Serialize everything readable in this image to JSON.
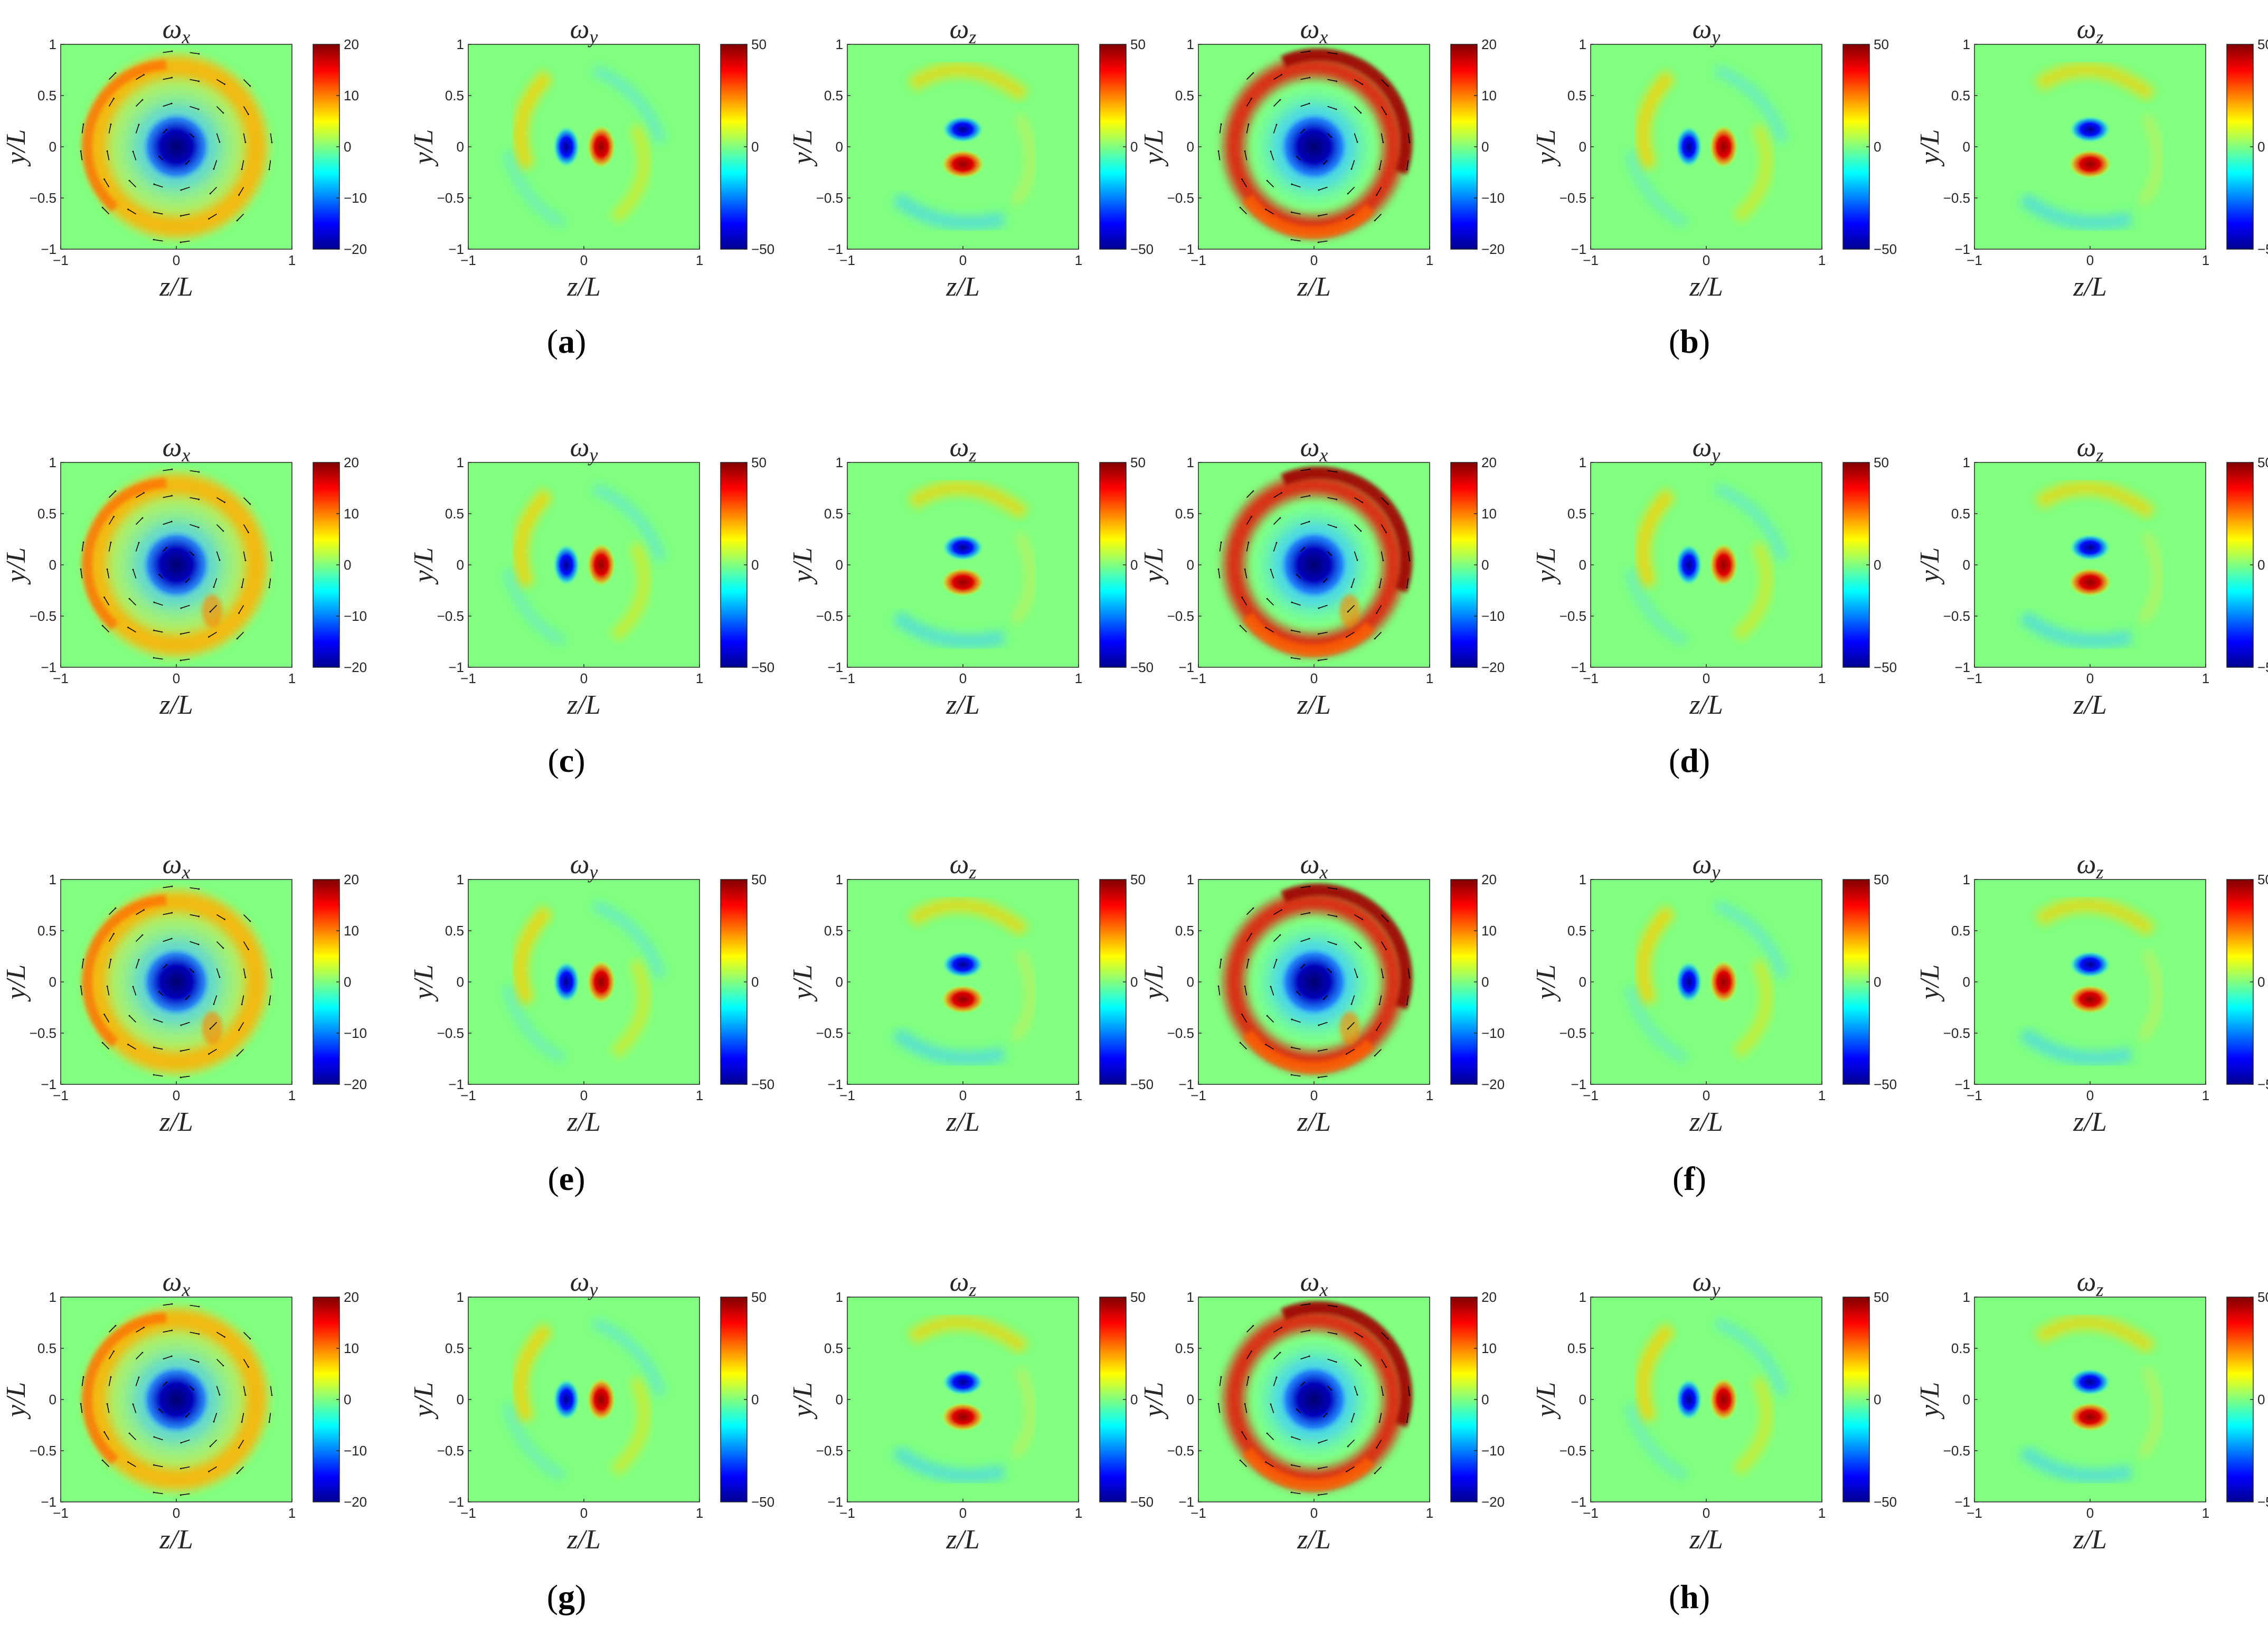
{
  "figure": {
    "panel_labels": [
      "(a)",
      "(b)",
      "(c)",
      "(d)",
      "(e)",
      "(f)",
      "(g)",
      "(h)"
    ],
    "column_titles": [
      "ωx",
      "ωy",
      "ωz",
      "ωx",
      "ωy",
      "ωz"
    ],
    "colormap": "jet"
  },
  "chart_data": {
    "type": "heatmap",
    "rows": 4,
    "columns": 6,
    "xlabel": "z/L",
    "ylabel": "y/L",
    "xlim": [
      -1,
      1
    ],
    "ylim": [
      -1,
      1
    ],
    "x_ticks": [
      -1,
      0,
      1
    ],
    "x_tick_labels": [
      "−1",
      "0",
      "1"
    ],
    "y_ticks": [
      1,
      0.5,
      0,
      -0.5,
      -1
    ],
    "y_tick_labels": [
      "1",
      "0.5",
      "0",
      "−0.5",
      "−1"
    ],
    "colorbars": {
      "omega_x": {
        "range": [
          -20,
          20
        ],
        "ticks": [
          20,
          10,
          0,
          -10,
          -20
        ],
        "tick_labels": [
          "20",
          "10",
          "0",
          "−10",
          "−20"
        ]
      },
      "omega_yz": {
        "range": [
          -50,
          50
        ],
        "ticks": [
          50,
          0,
          -50
        ],
        "tick_labels": [
          "50",
          "0",
          "−50"
        ]
      }
    },
    "quiver_overlay": "omega_x panels",
    "panels": [
      {
        "label": "(a)",
        "components": [
          "omega_x",
          "omega_y",
          "omega_z"
        ]
      },
      {
        "label": "(b)",
        "components": [
          "omega_x",
          "omega_y",
          "omega_z"
        ]
      },
      {
        "label": "(c)",
        "components": [
          "omega_x",
          "omega_y",
          "omega_z"
        ]
      },
      {
        "label": "(d)",
        "components": [
          "omega_x",
          "omega_y",
          "omega_z"
        ]
      },
      {
        "label": "(e)",
        "components": [
          "omega_x",
          "omega_y",
          "omega_z"
        ]
      },
      {
        "label": "(f)",
        "components": [
          "omega_x",
          "omega_y",
          "omega_z"
        ]
      },
      {
        "label": "(g)",
        "components": [
          "omega_x",
          "omega_y",
          "omega_z"
        ]
      },
      {
        "label": "(h)",
        "components": [
          "omega_x",
          "omega_y",
          "omega_z"
        ]
      }
    ]
  }
}
